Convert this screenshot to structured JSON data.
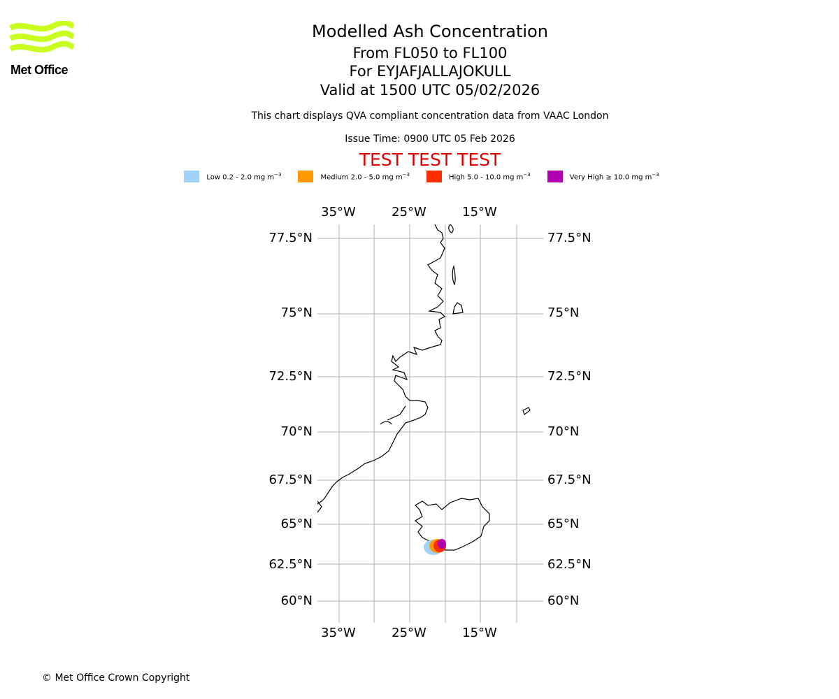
{
  "header": {
    "logo_text": "Met Office",
    "title": "Modelled Ash Concentration",
    "levels": "From FL050 to FL100",
    "volcano": "For EYJAFJALLAJOKULL",
    "valid": "Valid at 1500 UTC 05/02/2026",
    "compliance": "This chart displays QVA compliant concentration data from VAAC London",
    "issue_time": "Issue Time: 0900 UTC 05 Feb 2026",
    "test_banner": "TEST TEST TEST"
  },
  "legend": [
    {
      "label": "Low 0.2 - 2.0 mg m",
      "color": "#a0d2fa"
    },
    {
      "label": "Medium 2.0 - 5.0 mg m",
      "color": "#ff9a00"
    },
    {
      "label": "High 5.0 - 10.0 mg m",
      "color": "#ff2e00"
    },
    {
      "label": "Very High ≥ 10.0 mg m",
      "color": "#b000b0"
    }
  ],
  "legend_unit_exp": "−3",
  "map": {
    "lon_ticks": [
      "35°W",
      "25°W",
      "15°W"
    ],
    "lat_ticks": [
      "77.5°N",
      "75°N",
      "72.5°N",
      "70°N",
      "67.5°N",
      "65°N",
      "62.5°N",
      "60°N"
    ],
    "grid": true
  },
  "footer": {
    "copyright": "© Met Office Crown Copyright"
  }
}
